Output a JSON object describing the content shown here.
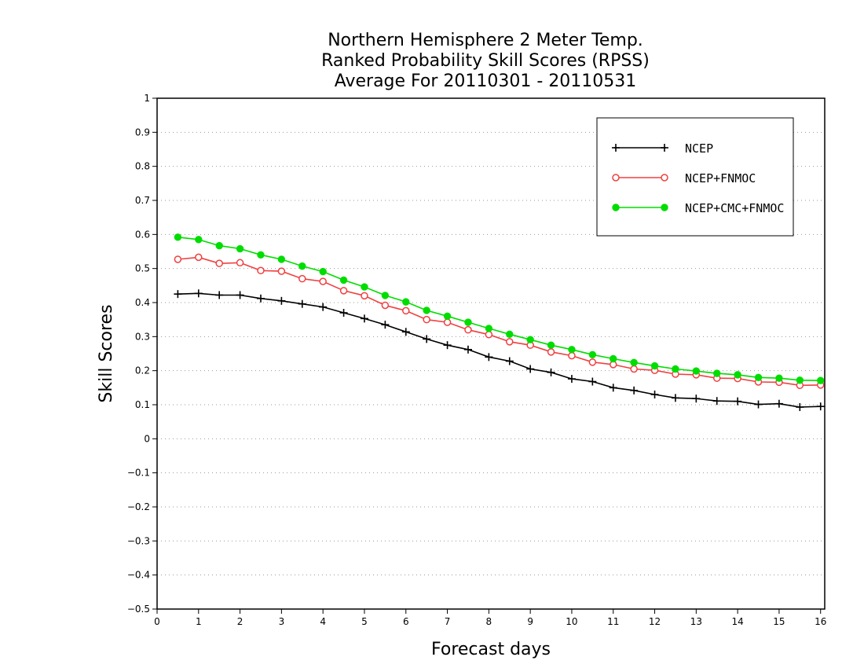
{
  "chart_data": {
    "type": "line",
    "title": [
      "Northern Hemisphere 2 Meter Temp.",
      "Ranked Probability Skill Scores (RPSS)",
      "Average For 20110301 - 20110531"
    ],
    "xlabel": "Forecast days",
    "ylabel": "Skill Scores",
    "xlim": [
      0,
      16.1
    ],
    "ylim": [
      -0.5,
      1
    ],
    "xticks": [
      0,
      1,
      2,
      3,
      4,
      5,
      6,
      7,
      8,
      9,
      10,
      11,
      12,
      13,
      14,
      15,
      16
    ],
    "xtick_labels": [
      "0",
      "1",
      "2",
      "3",
      "4",
      "5",
      "6",
      "7",
      "8",
      "9",
      "10",
      "11",
      "12",
      "13",
      "14",
      "15",
      "16"
    ],
    "yticks": [
      -0.5,
      -0.4,
      -0.3,
      -0.2,
      -0.1,
      0,
      0.1,
      0.2,
      0.3,
      0.4,
      0.5,
      0.6,
      0.7,
      0.8,
      0.9,
      1
    ],
    "ytick_labels": [
      "−0.5",
      "−0.4",
      "−0.3",
      "−0.2",
      "−0.1",
      "0",
      "0.1",
      "0.2",
      "0.3",
      "0.4",
      "0.5",
      "0.6",
      "0.7",
      "0.8",
      "0.9",
      "1"
    ],
    "grid": "horizontal-dotted",
    "legend_position": "top-right",
    "x": [
      0.5,
      1,
      1.5,
      2,
      2.5,
      3,
      3.5,
      4,
      4.5,
      5,
      5.5,
      6,
      6.5,
      7,
      7.5,
      8,
      8.5,
      9,
      9.5,
      10,
      10.5,
      11,
      11.5,
      12,
      12.5,
      13,
      13.5,
      14,
      14.5,
      15,
      15.5,
      16
    ],
    "series": [
      {
        "name": "NCEP",
        "color": "#000000",
        "marker": "plus",
        "values": [
          0.425,
          0.427,
          0.422,
          0.422,
          0.412,
          0.405,
          0.396,
          0.387,
          0.37,
          0.353,
          0.335,
          0.314,
          0.293,
          0.275,
          0.262,
          0.24,
          0.228,
          0.205,
          0.195,
          0.176,
          0.168,
          0.15,
          0.142,
          0.13,
          0.12,
          0.118,
          0.111,
          0.11,
          0.101,
          0.103,
          0.093,
          0.095
        ]
      },
      {
        "name": "NCEP+FNMOC",
        "color": "#f04040",
        "marker": "open-circle",
        "values": [
          0.527,
          0.533,
          0.515,
          0.517,
          0.494,
          0.492,
          0.47,
          0.462,
          0.435,
          0.42,
          0.392,
          0.376,
          0.35,
          0.342,
          0.32,
          0.306,
          0.285,
          0.275,
          0.255,
          0.244,
          0.225,
          0.218,
          0.205,
          0.201,
          0.19,
          0.188,
          0.178,
          0.177,
          0.167,
          0.166,
          0.157,
          0.158
        ]
      },
      {
        "name": "NCEP+CMC+FNMOC",
        "color": "#00dd00",
        "marker": "filled-circle",
        "values": [
          0.592,
          0.585,
          0.567,
          0.558,
          0.54,
          0.527,
          0.507,
          0.491,
          0.466,
          0.446,
          0.421,
          0.402,
          0.377,
          0.36,
          0.342,
          0.324,
          0.307,
          0.291,
          0.275,
          0.262,
          0.247,
          0.235,
          0.224,
          0.214,
          0.205,
          0.199,
          0.192,
          0.188,
          0.18,
          0.178,
          0.172,
          0.171
        ]
      }
    ]
  }
}
